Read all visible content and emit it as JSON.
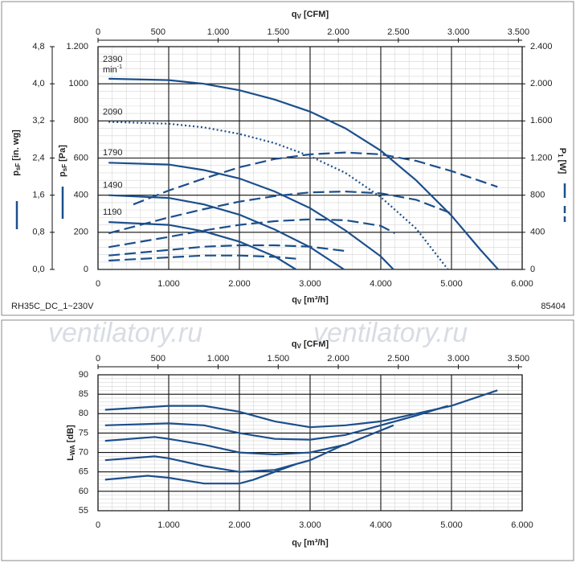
{
  "chart_data": [
    {
      "type": "line",
      "watermark": "ventilatory.ru",
      "x_label": {
        "text": "q",
        "sub": "V",
        "unit": "[m³/h]"
      },
      "x2_label": {
        "text": "q",
        "sub": "V",
        "unit": "[CFM]"
      },
      "y_label": {
        "text": "p",
        "sub": "sF",
        "unit": "[Pa]"
      },
      "y2_label": {
        "text": "P",
        "sub": "1",
        "unit": "[W]"
      },
      "y3_label": {
        "text": "p",
        "sub": "sF",
        "unit": "[in. wg]"
      },
      "footer_left": "RH35C_DC_1~230V",
      "footer_right": "85404",
      "annotations": [
        "2390",
        "2090",
        "1790",
        "1490",
        "1190"
      ],
      "annotation_unit": {
        "text": "min",
        "sup": "-1"
      },
      "xlim": [
        0,
        6000
      ],
      "xticks": [
        0,
        {
          "value": 1000,
          "label": "1.000"
        },
        {
          "value": 2000,
          "label": "2.000"
        },
        {
          "value": 3000,
          "label": "3.000"
        },
        {
          "value": 4000,
          "label": "4.000"
        },
        {
          "value": 5000,
          "label": "5.000"
        },
        {
          "value": 6000,
          "label": "6.000"
        }
      ],
      "x2lim": [
        0,
        3531
      ],
      "x2ticks": [
        0,
        500,
        {
          "value": 1000,
          "label": "1.000"
        },
        {
          "value": 1500,
          "label": "1.500"
        },
        {
          "value": 2000,
          "label": "2.000"
        },
        {
          "value": 2500,
          "label": "2.500"
        },
        {
          "value": 3000,
          "label": "3.000"
        },
        {
          "value": 3500,
          "label": "3.500"
        }
      ],
      "ylim": [
        0,
        1200
      ],
      "yticks": [
        0,
        200,
        400,
        600,
        800,
        1000,
        {
          "value": 1200,
          "label": "1.200"
        }
      ],
      "y2lim": [
        0,
        2400
      ],
      "y2ticks": [
        0,
        400,
        800,
        {
          "value": 1200,
          "label": "1.200"
        },
        {
          "value": 1600,
          "label": "1.600"
        },
        {
          "value": 2000,
          "label": "2.000"
        },
        {
          "value": 2400,
          "label": "2.400"
        }
      ],
      "y3lim": [
        0,
        4.8
      ],
      "y3ticks": [
        {
          "value": 0,
          "label": "0,0"
        },
        {
          "value": 0.8,
          "label": "0,8"
        },
        {
          "value": 1.6,
          "label": "1,6"
        },
        {
          "value": 2.4,
          "label": "2,4"
        },
        {
          "value": 3.2,
          "label": "3,2"
        },
        {
          "value": 4.0,
          "label": "4,0"
        },
        {
          "value": 4.8,
          "label": "4,8"
        }
      ],
      "grid": true,
      "series": [
        {
          "color": "#1c4f8c",
          "style": "solid",
          "axis": "y",
          "x": [
            150,
            1000,
            1500,
            2000,
            2500,
            3000,
            3500,
            4000,
            4500,
            5000,
            5400,
            5660
          ],
          "values": [
            1027,
            1020,
            1000,
            965,
            915,
            850,
            760,
            640,
            480,
            290,
            110,
            0
          ]
        },
        {
          "color": "#1c4f8c",
          "style": "dotted",
          "axis": "y",
          "x": [
            150,
            1000,
            1500,
            2000,
            2500,
            3000,
            3500,
            4000,
            4500,
            4950
          ],
          "values": [
            795,
            785,
            765,
            730,
            680,
            610,
            520,
            390,
            220,
            0
          ]
        },
        {
          "color": "#1c4f8c",
          "style": "solid",
          "axis": "y",
          "x": [
            150,
            1000,
            1500,
            2000,
            2500,
            3000,
            3500,
            4000,
            4180
          ],
          "values": [
            575,
            565,
            535,
            490,
            420,
            330,
            210,
            70,
            0
          ]
        },
        {
          "color": "#1c4f8c",
          "style": "solid",
          "axis": "y",
          "x": [
            150,
            1000,
            1500,
            2000,
            2500,
            3000,
            3480
          ],
          "values": [
            400,
            385,
            350,
            295,
            215,
            120,
            0
          ]
        },
        {
          "color": "#1c4f8c",
          "style": "solid",
          "axis": "y",
          "x": [
            150,
            1000,
            1500,
            2000,
            2500,
            2800
          ],
          "values": [
            255,
            240,
            205,
            150,
            70,
            0
          ]
        },
        {
          "color": "#1c4f8c",
          "style": "dashed",
          "axis": "y2",
          "x": [
            500,
            1000,
            1500,
            2000,
            2500,
            3000,
            3500,
            4000,
            4500,
            5000,
            5650
          ],
          "values": [
            700,
            850,
            980,
            1100,
            1190,
            1240,
            1260,
            1240,
            1170,
            1060,
            890
          ]
        },
        {
          "color": "#1c4f8c",
          "style": "dashed",
          "axis": "y2",
          "x": [
            150,
            1000,
            1500,
            2000,
            2500,
            3000,
            3500,
            4000,
            4500,
            4980
          ],
          "values": [
            390,
            560,
            650,
            730,
            790,
            830,
            840,
            820,
            750,
            610
          ]
        },
        {
          "color": "#1c4f8c",
          "style": "dashed",
          "axis": "y2",
          "x": [
            150,
            1000,
            1500,
            2000,
            2500,
            3000,
            3500,
            4000,
            4200
          ],
          "values": [
            240,
            350,
            420,
            480,
            520,
            540,
            530,
            470,
            390
          ]
        },
        {
          "color": "#1c4f8c",
          "style": "dashed",
          "axis": "y2",
          "x": [
            150,
            1000,
            1500,
            2000,
            2500,
            3000,
            3480
          ],
          "values": [
            150,
            210,
            245,
            260,
            260,
            245,
            200
          ]
        },
        {
          "color": "#1c4f8c",
          "style": "dashed",
          "axis": "y2",
          "x": [
            150,
            1000,
            1500,
            2000,
            2500,
            2800
          ],
          "values": [
            95,
            130,
            150,
            150,
            135,
            115
          ]
        }
      ]
    },
    {
      "type": "line",
      "watermark": "ventilatory.ru",
      "x_label": {
        "text": "q",
        "sub": "V",
        "unit": "[m³/h]"
      },
      "x2_label": {
        "text": "q",
        "sub": "V",
        "unit": "[CFM]"
      },
      "y_label": {
        "text": "L",
        "sub": "WA",
        "unit": "[dB]"
      },
      "xlim": [
        0,
        6000
      ],
      "xticks": [
        0,
        {
          "value": 1000,
          "label": "1.000"
        },
        {
          "value": 2000,
          "label": "2.000"
        },
        {
          "value": 3000,
          "label": "3.000"
        },
        {
          "value": 4000,
          "label": "4.000"
        },
        {
          "value": 5000,
          "label": "5.000"
        },
        {
          "value": 6000,
          "label": "6.000"
        }
      ],
      "x2lim": [
        0,
        3531
      ],
      "x2ticks": [
        0,
        500,
        {
          "value": 1000,
          "label": "1.000"
        },
        {
          "value": 1500,
          "label": "1.500"
        },
        {
          "value": 2000,
          "label": "2.000"
        },
        {
          "value": 2500,
          "label": "2.500"
        },
        {
          "value": 3000,
          "label": "3.000"
        },
        {
          "value": 3500,
          "label": "3.500"
        }
      ],
      "ylim": [
        55,
        90
      ],
      "yticks": [
        55,
        60,
        65,
        70,
        75,
        80,
        85,
        90
      ],
      "grid": true,
      "series": [
        {
          "color": "#1c4f8c",
          "style": "solid",
          "x": [
            100,
            1000,
            1500,
            2000,
            2500,
            3000,
            3500,
            4000,
            4500,
            5000,
            5650
          ],
          "values": [
            81,
            82,
            82,
            80.5,
            78,
            76.5,
            77,
            78,
            80,
            82,
            86
          ]
        },
        {
          "color": "#1c4f8c",
          "style": "solid",
          "x": [
            100,
            1000,
            1500,
            2000,
            2500,
            3000,
            3500,
            4000,
            4500,
            4950
          ],
          "values": [
            77,
            77.5,
            77,
            75,
            73.5,
            73.3,
            74.5,
            77,
            79.5,
            82
          ]
        },
        {
          "color": "#1c4f8c",
          "style": "solid",
          "x": [
            100,
            800,
            1000,
            1500,
            2000,
            2500,
            3000,
            3500,
            4180
          ],
          "values": [
            73,
            74,
            73.5,
            72,
            70,
            69.5,
            70,
            72,
            77
          ]
        },
        {
          "color": "#1c4f8c",
          "style": "solid",
          "x": [
            100,
            800,
            1000,
            1500,
            2000,
            2500,
            3000,
            3480
          ],
          "values": [
            68,
            69,
            68.5,
            66.5,
            65,
            65.5,
            68,
            72
          ]
        },
        {
          "color": "#1c4f8c",
          "style": "solid",
          "x": [
            100,
            700,
            1000,
            1500,
            2000,
            2200,
            2500,
            2800
          ],
          "values": [
            63,
            64,
            63.5,
            62,
            62,
            63,
            65,
            67
          ]
        }
      ]
    }
  ]
}
